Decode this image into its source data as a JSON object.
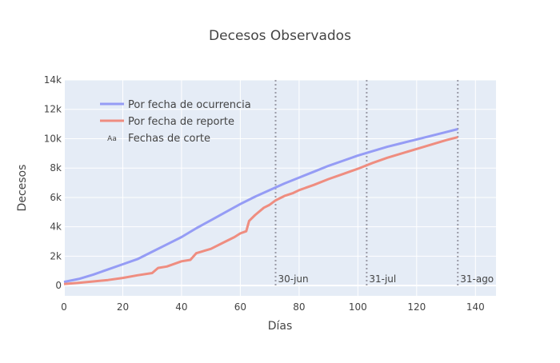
{
  "chart_data": {
    "type": "line",
    "title": "Decesos Observados",
    "xlabel": "Días",
    "ylabel": "Decesos",
    "xlim": [
      0,
      147
    ],
    "ylim": [
      -700,
      14000
    ],
    "x_ticks": [
      0,
      20,
      40,
      60,
      80,
      100,
      120,
      140
    ],
    "y_ticks": [
      0,
      2000,
      4000,
      6000,
      8000,
      10000,
      12000,
      14000
    ],
    "y_tick_labels": [
      "0",
      "2k",
      "4k",
      "6k",
      "8k",
      "10k",
      "12k",
      "14k"
    ],
    "grid": true,
    "legend_position": "top-left",
    "colors": {
      "background": "#e5ecf6",
      "ocurrencia": "#959cf5",
      "reporte": "#ef8d80",
      "cutoff": "#9a9aa6"
    },
    "series": [
      {
        "name": "Por fecha de ocurrencia",
        "x": [
          0,
          5,
          10,
          15,
          20,
          25,
          30,
          35,
          40,
          45,
          50,
          55,
          60,
          65,
          70,
          75,
          80,
          85,
          90,
          95,
          100,
          105,
          110,
          115,
          120,
          125,
          130,
          134
        ],
        "y": [
          250,
          450,
          750,
          1100,
          1450,
          1800,
          2300,
          2800,
          3300,
          3900,
          4450,
          5000,
          5550,
          6050,
          6500,
          6950,
          7350,
          7750,
          8150,
          8500,
          8850,
          9150,
          9450,
          9700,
          9950,
          10200,
          10450,
          10650
        ]
      },
      {
        "name": "Por fecha de reporte",
        "x": [
          0,
          5,
          10,
          15,
          20,
          25,
          30,
          32,
          35,
          40,
          43,
          45,
          50,
          55,
          58,
          60,
          62,
          63,
          65,
          68,
          70,
          72,
          75,
          78,
          80,
          85,
          90,
          95,
          100,
          105,
          110,
          115,
          120,
          125,
          130,
          134
        ],
        "y": [
          100,
          180,
          280,
          380,
          520,
          700,
          850,
          1200,
          1300,
          1650,
          1750,
          2200,
          2500,
          3000,
          3300,
          3550,
          3700,
          4400,
          4800,
          5300,
          5500,
          5800,
          6100,
          6300,
          6500,
          6850,
          7250,
          7600,
          7950,
          8350,
          8700,
          9000,
          9300,
          9600,
          9900,
          10100
        ]
      }
    ],
    "cutoff_label": "Fechas de corte",
    "cutoff_legend_symbol": "Aa",
    "cutoffs": [
      {
        "x": 72,
        "label": "30-jun"
      },
      {
        "x": 103,
        "label": "31-jul"
      },
      {
        "x": 134,
        "label": "31-ago"
      }
    ]
  }
}
